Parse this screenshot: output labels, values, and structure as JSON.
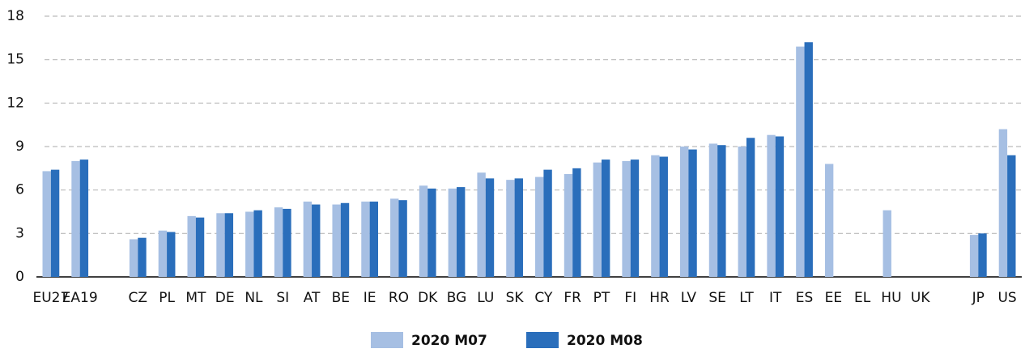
{
  "chart_data": {
    "type": "bar",
    "categories": [
      "EU27",
      "EA19",
      null,
      "CZ",
      "PL",
      "MT",
      "DE",
      "NL",
      "SI",
      "AT",
      "BE",
      "IE",
      "RO",
      "DK",
      "BG",
      "LU",
      "SK",
      "CY",
      "FR",
      "PT",
      "FI",
      "HR",
      "LV",
      "SE",
      "LT",
      "IT",
      "ES",
      "EE",
      "EL",
      "HU",
      "UK",
      null,
      "JP",
      "US"
    ],
    "series": [
      {
        "name": "2020 M07",
        "color": "#a6bfe3",
        "values": [
          7.3,
          8.0,
          null,
          2.6,
          3.2,
          4.2,
          4.4,
          4.5,
          4.8,
          5.2,
          5.0,
          5.2,
          5.4,
          6.3,
          6.1,
          7.2,
          6.7,
          6.9,
          7.1,
          7.9,
          8.0,
          8.4,
          9.0,
          9.2,
          9.0,
          9.8,
          15.9,
          7.8,
          null,
          4.6,
          null,
          null,
          2.9,
          10.2
        ]
      },
      {
        "name": "2020 M08",
        "color": "#2a6ebb",
        "values": [
          7.4,
          8.1,
          null,
          2.7,
          3.1,
          4.1,
          4.4,
          4.6,
          4.7,
          5.0,
          5.1,
          5.2,
          5.3,
          6.1,
          6.2,
          6.8,
          6.8,
          7.4,
          7.5,
          8.1,
          8.1,
          8.3,
          8.8,
          9.1,
          9.6,
          9.7,
          16.2,
          null,
          null,
          null,
          null,
          null,
          3.0,
          8.4
        ]
      }
    ],
    "ylim": [
      0,
      18
    ],
    "yticks": [
      0,
      3,
      6,
      9,
      12,
      15,
      18
    ],
    "grid": true,
    "legend": "bottom"
  }
}
